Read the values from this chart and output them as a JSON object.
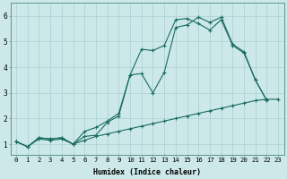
{
  "xlabel": "Humidex (Indice chaleur)",
  "bg_color": "#cce8e8",
  "line_color": "#1a6b60",
  "grid_color": "#aad0d0",
  "xlim": [
    -0.5,
    23.5
  ],
  "ylim": [
    0.6,
    6.5
  ],
  "xticks": [
    0,
    1,
    2,
    3,
    4,
    5,
    6,
    7,
    8,
    9,
    10,
    11,
    12,
    13,
    14,
    15,
    16,
    17,
    18,
    19,
    20,
    21,
    22,
    23
  ],
  "yticks": [
    1,
    2,
    3,
    4,
    5,
    6
  ],
  "line1_x": [
    0,
    1,
    2,
    3,
    4,
    5,
    6,
    7,
    8,
    9,
    10,
    11,
    12,
    13,
    14,
    15,
    16,
    17,
    18,
    19,
    20,
    21,
    22
  ],
  "line1_y": [
    1.1,
    0.9,
    1.25,
    1.2,
    1.25,
    1.0,
    1.3,
    1.35,
    1.85,
    2.1,
    3.7,
    3.75,
    3.0,
    3.8,
    5.55,
    5.65,
    5.95,
    5.75,
    5.95,
    4.9,
    4.6,
    3.5,
    2.7
  ],
  "line2_x": [
    0,
    1,
    2,
    3,
    4,
    5,
    6,
    7,
    8,
    9,
    10,
    11,
    12,
    13,
    14,
    15,
    16,
    17,
    18,
    19,
    20,
    21,
    22
  ],
  "line2_y": [
    1.1,
    0.9,
    1.25,
    1.2,
    1.25,
    1.0,
    1.5,
    1.65,
    1.9,
    2.2,
    3.7,
    4.7,
    4.65,
    4.85,
    5.85,
    5.9,
    5.7,
    5.45,
    5.85,
    4.85,
    4.55,
    3.5,
    2.7
  ],
  "line3_x": [
    0,
    1,
    2,
    3,
    4,
    5,
    6,
    7,
    8,
    9,
    10,
    11,
    12,
    13,
    14,
    15,
    16,
    17,
    18,
    19,
    20,
    21,
    22,
    23
  ],
  "line3_y": [
    1.1,
    0.9,
    1.2,
    1.15,
    1.2,
    1.0,
    1.15,
    1.3,
    1.4,
    1.5,
    1.6,
    1.7,
    1.8,
    1.9,
    2.0,
    2.1,
    2.2,
    2.3,
    2.4,
    2.5,
    2.6,
    2.7,
    2.75,
    2.75
  ],
  "xlabel_fontsize": 6.0,
  "tick_fontsize": 5.2
}
